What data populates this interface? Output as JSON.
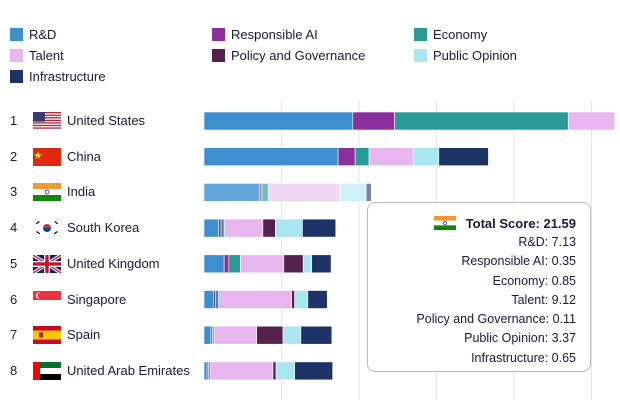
{
  "chart_data": {
    "type": "bar",
    "orientation": "horizontal",
    "stacked": true,
    "title": "",
    "legend": {
      "placement": "top",
      "entries": [
        {
          "key": "rd",
          "label": "R&D",
          "color": "#3e8fcf"
        },
        {
          "key": "responsible_ai",
          "label": "Responsible AI",
          "color": "#8b2f9e"
        },
        {
          "key": "economy",
          "label": "Economy",
          "color": "#2a9a96"
        },
        {
          "key": "talent",
          "label": "Talent",
          "color": "#e8b6ef"
        },
        {
          "key": "policy",
          "label": "Policy and Governance",
          "color": "#55214f"
        },
        {
          "key": "public_opinion",
          "label": "Public Opinion",
          "color": "#a8e7ef"
        },
        {
          "key": "infrastructure",
          "label": "Infrastructure",
          "color": "#1d3266"
        }
      ]
    },
    "xlim": [
      0,
      52
    ],
    "gridlines": [
      10,
      20,
      30,
      40,
      50
    ],
    "countries": [
      {
        "rank": "1",
        "name": "United States",
        "flag": "us",
        "values": {
          "rd": 19.2,
          "responsible_ai": 5.4,
          "economy": 22.4,
          "talent": 6.0,
          "policy": 0,
          "public_opinion": 0,
          "infrastructure": 0
        }
      },
      {
        "rank": "2",
        "name": "China",
        "flag": "cn",
        "values": {
          "rd": 17.3,
          "responsible_ai": 2.2,
          "economy": 1.8,
          "talent": 5.7,
          "policy": 0,
          "public_opinion": 3.3,
          "infrastructure": 6.4
        }
      },
      {
        "rank": "3",
        "name": "India",
        "flag": "in",
        "values": {
          "rd": 7.13,
          "responsible_ai": 0.35,
          "economy": 0.85,
          "talent": 9.12,
          "policy": 0.11,
          "public_opinion": 3.37,
          "infrastructure": 0.65
        }
      },
      {
        "rank": "4",
        "name": "South Korea",
        "flag": "kr",
        "values": {
          "rd": 1.9,
          "responsible_ai": 0.3,
          "economy": 0.4,
          "talent": 5.0,
          "policy": 1.6,
          "public_opinion": 3.5,
          "infrastructure": 4.3
        }
      },
      {
        "rank": "5",
        "name": "United Kingdom",
        "flag": "gb",
        "values": {
          "rd": 2.6,
          "responsible_ai": 0.6,
          "economy": 1.5,
          "talent": 5.6,
          "policy": 2.5,
          "public_opinion": 1.1,
          "infrastructure": 2.5
        }
      },
      {
        "rank": "6",
        "name": "Singapore",
        "flag": "sg",
        "values": {
          "rd": 1.2,
          "responsible_ai": 0.3,
          "economy": 0.4,
          "talent": 9.4,
          "policy": 0.4,
          "public_opinion": 1.7,
          "infrastructure": 2.5
        }
      },
      {
        "rank": "7",
        "name": "Spain",
        "flag": "es",
        "values": {
          "rd": 0.9,
          "responsible_ai": 0.2,
          "economy": 0.2,
          "talent": 5.5,
          "policy": 3.4,
          "public_opinion": 2.3,
          "infrastructure": 4.0
        }
      },
      {
        "rank": "8",
        "name": "United Arab Emirates",
        "flag": "ae",
        "values": {
          "rd": 0.4,
          "responsible_ai": 0.2,
          "economy": 0.2,
          "talent": 8.1,
          "policy": 0.4,
          "public_opinion": 2.4,
          "infrastructure": 4.9
        }
      }
    ],
    "tooltip": {
      "country_flag": "in",
      "title": "Total Score: 21.59",
      "lines": [
        "R&D: 7.13",
        "Responsible AI: 0.35",
        "Economy: 0.85",
        "Talent: 9.12",
        "Policy and Governance: 0.11",
        "Public Opinion: 3.37",
        "Infrastructure: 0.65"
      ]
    }
  }
}
